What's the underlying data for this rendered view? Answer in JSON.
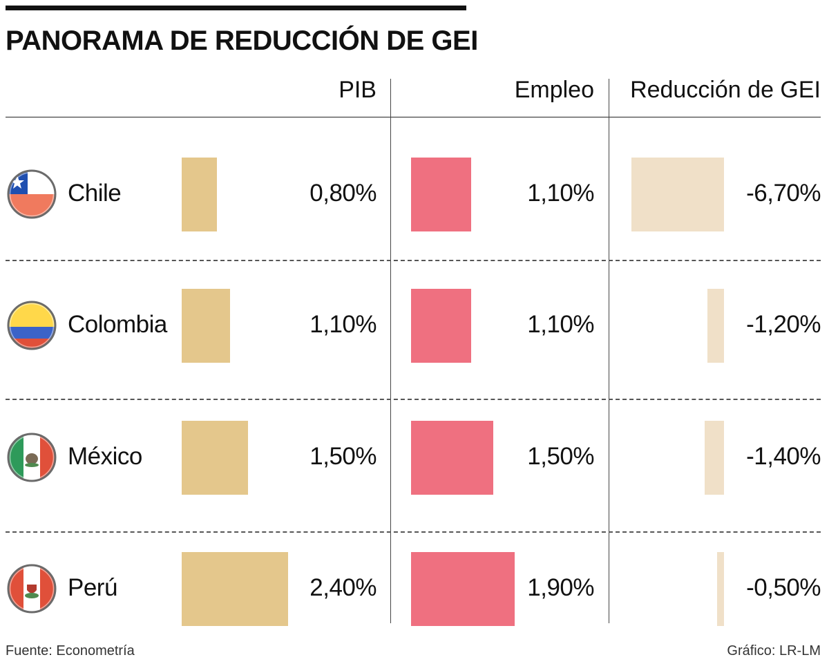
{
  "title": "PANORAMA DE REDUCCIÓN DE GEI",
  "chart_data": {
    "type": "bar",
    "title": "PANORAMA DE REDUCCIÓN DE GEI",
    "categories": [
      "Chile",
      "Colombia",
      "México",
      "Perú"
    ],
    "series": [
      {
        "name": "PIB",
        "values": [
          0.8,
          1.1,
          1.5,
          2.4
        ],
        "labels": [
          "0,80%",
          "1,10%",
          "1,50%",
          "2,40%"
        ],
        "color": "#e4c78c"
      },
      {
        "name": "Empleo",
        "values": [
          1.1,
          1.1,
          1.5,
          1.9
        ],
        "labels": [
          "1,10%",
          "1,10%",
          "1,50%",
          "1,90%"
        ],
        "color": "#ef7080"
      },
      {
        "name": "Reducción de GEI",
        "values": [
          -6.7,
          -1.2,
          -1.4,
          -0.5
        ],
        "labels": [
          "-6,70%",
          "-1,20%",
          "-1,40%",
          "-0,50%"
        ],
        "color": "#f0e0c8"
      }
    ],
    "xlabel": "",
    "ylabel": "",
    "unit": "%",
    "grid": false,
    "legend": "none"
  },
  "flags": {
    "chile": [
      "#1f4fb0",
      "#ffffff",
      "#f07a5e"
    ],
    "colombia": [
      "#ffd84a",
      "#3b63c8",
      "#e0503a"
    ],
    "mexico": [
      "#2e9a5a",
      "#ffffff",
      "#e0503a"
    ],
    "peru": [
      "#e0503a",
      "#ffffff",
      "#e0503a"
    ]
  },
  "footer": {
    "source": "Fuente: Econometría",
    "credit": "Gráfico: LR-LM"
  }
}
